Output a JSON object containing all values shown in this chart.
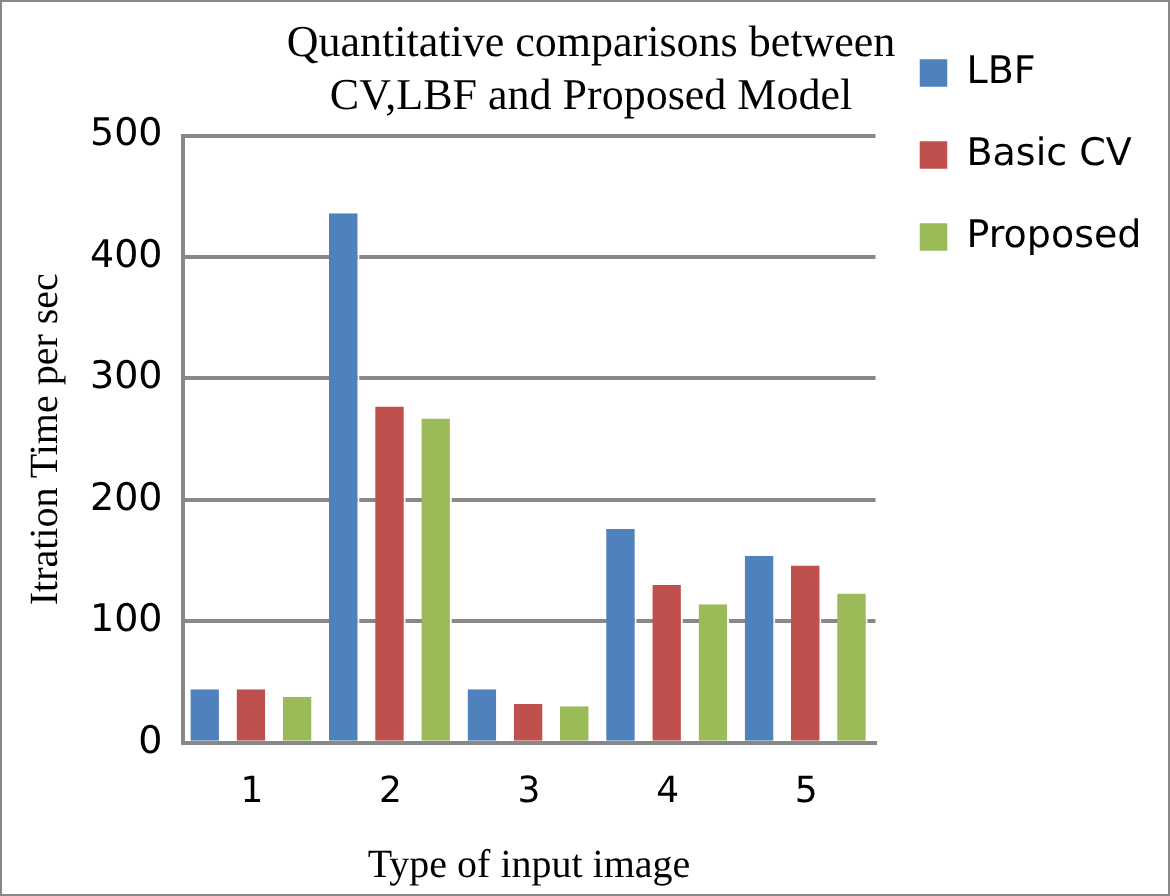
{
  "chart_data": {
    "type": "bar",
    "title": [
      "Quantitative comparisons between",
      "CV,LBF and Proposed Model"
    ],
    "xlabel": "Type of input image",
    "ylabel": "Itration Time per sec",
    "categories": [
      "1",
      "2",
      "3",
      "4",
      "5"
    ],
    "series": [
      {
        "name": "LBF",
        "color": "#4f81bd",
        "values": [
          44,
          436,
          44,
          176,
          154
        ]
      },
      {
        "name": "Basic CV",
        "color": "#c0504d",
        "values": [
          44,
          277,
          32,
          130,
          146
        ]
      },
      {
        "name": "Proposed",
        "color": "#9bbb59",
        "values": [
          38,
          267,
          30,
          114,
          123
        ]
      }
    ],
    "ylim": [
      0,
      500
    ],
    "yticks": [
      0,
      100,
      200,
      300,
      400,
      500
    ],
    "grid": "y",
    "legend": "right"
  }
}
